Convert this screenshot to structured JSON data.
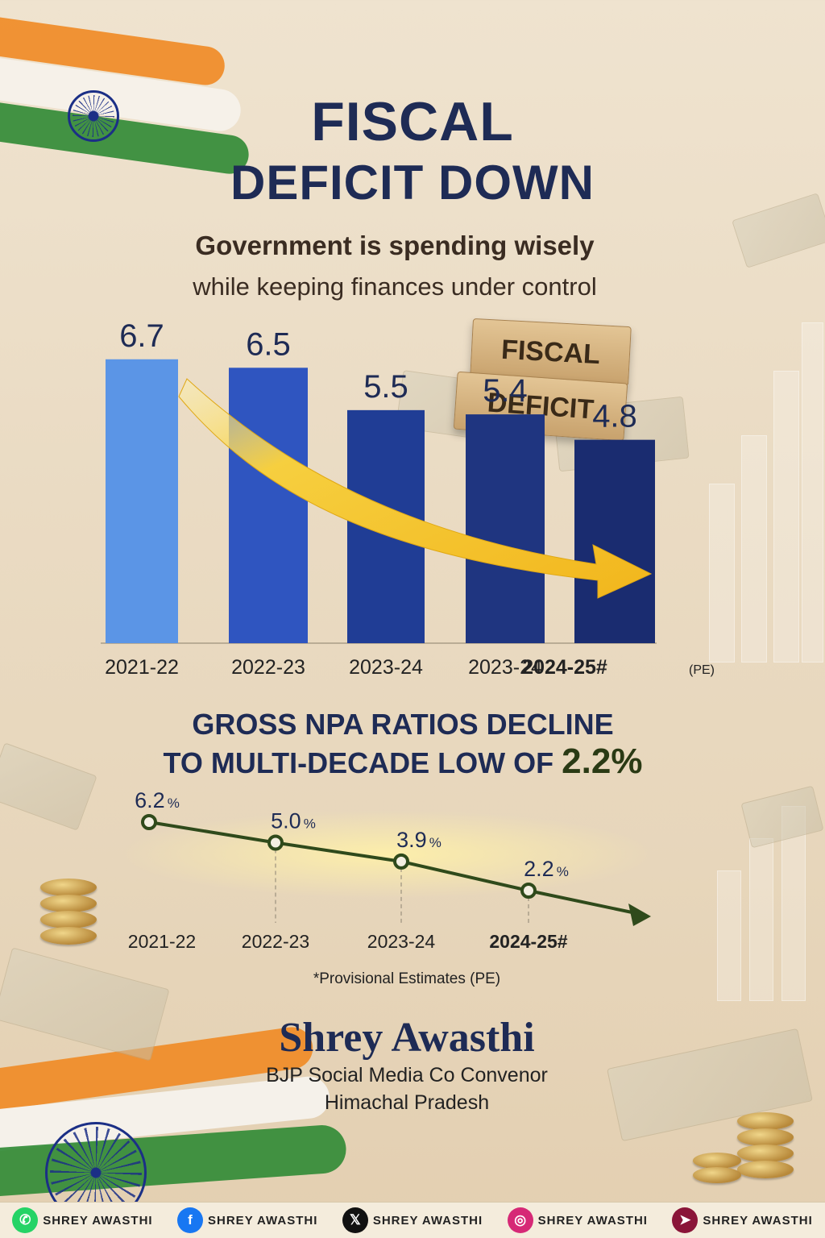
{
  "headline": {
    "line1": "FISCAL",
    "line2": "DEFICIT DOWN"
  },
  "subheadline": {
    "line1": "Government is spending wisely",
    "line2": "while keeping finances under control"
  },
  "blocks": {
    "top": "FISCAL",
    "bottom": "DEFICIT"
  },
  "colors": {
    "navy": "#1e2b55",
    "bar_light": "#5b95e6",
    "bar_dark": "#1f3580",
    "arrow_gold": "#f2c12e",
    "npa_line": "#2f4a1b",
    "saffron": "#f08a24",
    "green": "#2f8a34"
  },
  "chart_data": [
    {
      "type": "bar",
      "title": "FISCAL DEFICIT DOWN",
      "categories": [
        "2021-22",
        "2022-23",
        "2023-24",
        "2023-24",
        "2024-25#"
      ],
      "values": [
        6.7,
        6.5,
        5.5,
        5.4,
        4.8
      ],
      "labels": [
        "6.7",
        "6.5",
        "5.5",
        "5.4",
        "4.8"
      ],
      "last_category_note": "(PE)",
      "xlabel": "",
      "ylabel": "",
      "ylim": [
        0,
        7
      ],
      "grid": false,
      "trend": "decreasing"
    },
    {
      "type": "line",
      "title": "GROSS NPA RATIOS DECLINE TO MULTI-DECADE LOW OF 2.2%",
      "title_parts": {
        "main": "GROSS NPA RATIOS DECLINE",
        "second": "TO MULTI-DECADE LOW OF ",
        "highlight": "2.2%"
      },
      "categories": [
        "2021-22",
        "2022-23",
        "2023-24",
        "2024-25#"
      ],
      "values": [
        6.2,
        5.0,
        3.9,
        2.2
      ],
      "labels": [
        "6.2",
        "5.0",
        "3.9",
        "2.2"
      ],
      "unit": "%",
      "xlabel": "",
      "ylabel": "",
      "ylim": [
        0,
        7
      ],
      "grid": false
    }
  ],
  "footnote": "*Provisional Estimates (PE)",
  "author": {
    "name": "Shrey Awasthi",
    "role": "BJP Social Media Co Convenor",
    "region": "Himachal Pradesh"
  },
  "social": [
    {
      "platform": "whatsapp",
      "icon": "whatsapp-icon",
      "glyph": "✆",
      "color": "#25d366",
      "handle": "SHREY AWASTHI"
    },
    {
      "platform": "facebook",
      "icon": "facebook-icon",
      "glyph": "f",
      "color": "#1877f2",
      "handle": "SHREY AWASTHI"
    },
    {
      "platform": "x",
      "icon": "x-icon",
      "glyph": "𝕏",
      "color": "#111111",
      "handle": "SHREY AWASTHI"
    },
    {
      "platform": "instagram",
      "icon": "instagram-icon",
      "glyph": "◎",
      "color": "#d62976",
      "handle": "SHREY AWASTHI"
    },
    {
      "platform": "telegram",
      "icon": "telegram-icon",
      "glyph": "➤",
      "color": "#8a1538",
      "handle": "SHREY AWASTHI"
    }
  ]
}
